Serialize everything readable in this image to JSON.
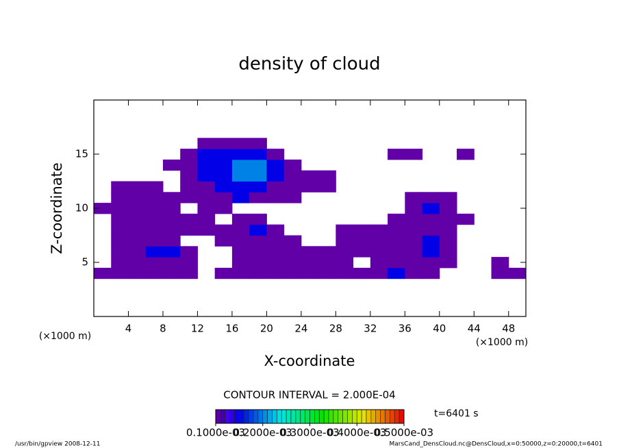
{
  "chart_data": {
    "type": "heatmap",
    "title": "density of cloud",
    "xlabel": "X-coordinate",
    "ylabel": "Z-coordinate",
    "xunit": "(×1000 m)",
    "yunit": "(×1000 m)",
    "xlim": [
      0,
      50
    ],
    "ylim": [
      0,
      20
    ],
    "xticks": [
      4,
      8,
      12,
      16,
      20,
      24,
      28,
      32,
      36,
      40,
      44,
      48
    ],
    "yticks": [
      5,
      10,
      15
    ],
    "x": [
      1,
      3,
      5,
      7,
      9,
      11,
      13,
      15,
      17,
      19,
      21,
      23,
      25,
      27,
      29,
      31,
      33,
      35,
      37,
      39,
      41,
      43,
      45,
      47,
      49
    ],
    "y": [
      4,
      5,
      6,
      7,
      8,
      9,
      10,
      11,
      12,
      13,
      14,
      15,
      16
    ],
    "z": [
      [
        0.0001,
        0.0001,
        0.0001,
        0.0001,
        0.0001,
        0.0001,
        null,
        0.0001,
        0.0001,
        0.0001,
        0.0001,
        0.0001,
        0.0001,
        0.0001,
        0.0001,
        0.0001,
        0.0001,
        0.00015,
        0.0001,
        0.0001,
        null,
        null,
        null,
        0.0001,
        0.0001
      ],
      [
        null,
        0.0001,
        0.0001,
        0.0001,
        0.0001,
        0.0001,
        null,
        null,
        0.0001,
        0.0001,
        0.0001,
        0.0001,
        0.0001,
        0.0001,
        0.0001,
        null,
        0.0001,
        0.0001,
        0.0001,
        0.0001,
        0.0001,
        null,
        null,
        0.0001,
        null
      ],
      [
        null,
        0.0001,
        0.0001,
        0.00015,
        0.00015,
        0.0001,
        null,
        null,
        0.0001,
        0.0001,
        0.0001,
        0.0001,
        0.0001,
        0.0001,
        0.0001,
        0.0001,
        0.0001,
        0.0001,
        0.0001,
        0.00015,
        0.0001,
        null,
        null,
        null,
        null
      ],
      [
        null,
        0.0001,
        0.0001,
        0.0001,
        0.0001,
        null,
        null,
        0.0001,
        0.0001,
        0.0001,
        0.0001,
        0.0001,
        null,
        null,
        0.0001,
        0.0001,
        0.0001,
        0.0001,
        0.0001,
        0.00015,
        0.0001,
        null,
        null,
        null,
        null
      ],
      [
        null,
        0.0001,
        0.0001,
        0.0001,
        0.0001,
        0.0001,
        0.0001,
        0.0001,
        0.0001,
        0.00015,
        0.0001,
        null,
        null,
        null,
        0.0001,
        0.0001,
        0.0001,
        0.0001,
        0.0001,
        0.0001,
        0.0001,
        null,
        null,
        null,
        null
      ],
      [
        null,
        0.0001,
        0.0001,
        0.0001,
        0.0001,
        0.0001,
        0.0001,
        null,
        0.0001,
        0.0001,
        null,
        null,
        null,
        null,
        null,
        null,
        null,
        0.0001,
        0.0001,
        0.0001,
        0.0001,
        0.0001,
        null,
        null,
        null
      ],
      [
        0.0001,
        0.0001,
        0.0001,
        0.0001,
        0.0001,
        null,
        0.0001,
        0.0001,
        null,
        null,
        null,
        null,
        null,
        null,
        null,
        null,
        null,
        null,
        0.0001,
        0.00015,
        0.0001,
        null,
        null,
        null,
        null
      ],
      [
        null,
        0.0001,
        0.0001,
        0.0001,
        0.0001,
        0.0001,
        0.0001,
        0.0001,
        0.00015,
        0.0001,
        0.0001,
        0.0001,
        null,
        null,
        null,
        null,
        null,
        null,
        0.0001,
        0.0001,
        0.0001,
        null,
        null,
        null,
        null
      ],
      [
        null,
        0.0001,
        0.0001,
        0.0001,
        null,
        0.0001,
        0.0001,
        0.00015,
        0.00015,
        0.00015,
        0.0001,
        0.0001,
        0.0001,
        0.0001,
        null,
        null,
        null,
        null,
        null,
        null,
        null,
        null,
        null,
        null,
        null
      ],
      [
        null,
        null,
        null,
        null,
        null,
        0.0001,
        0.00015,
        0.00015,
        0.0002,
        0.0002,
        0.00015,
        0.0001,
        0.0001,
        0.0001,
        null,
        null,
        null,
        null,
        null,
        null,
        null,
        null,
        null,
        null,
        null
      ],
      [
        null,
        null,
        null,
        null,
        0.0001,
        0.0001,
        0.00015,
        0.00015,
        0.0002,
        0.0002,
        0.00015,
        0.0001,
        null,
        null,
        null,
        null,
        null,
        null,
        null,
        null,
        null,
        null,
        null,
        null,
        null
      ],
      [
        null,
        null,
        null,
        null,
        null,
        0.0001,
        0.00015,
        0.00015,
        0.00015,
        0.00015,
        0.0001,
        null,
        null,
        null,
        null,
        null,
        null,
        0.0001,
        0.0001,
        null,
        null,
        0.0001,
        null,
        null,
        null
      ],
      [
        null,
        null,
        null,
        null,
        null,
        null,
        0.0001,
        0.0001,
        0.0001,
        0.0001,
        null,
        null,
        null,
        null,
        null,
        null,
        null,
        null,
        null,
        null,
        null,
        null,
        null,
        null,
        null
      ]
    ],
    "zlim": [
      0.0001,
      0.0005
    ],
    "colorbar_ticks": [
      {
        "value": 0.0001,
        "label": "0.1000e-03"
      },
      {
        "value": 0.0002,
        "label": "0.2000e-03"
      },
      {
        "value": 0.0003,
        "label": "0.3000e-03"
      },
      {
        "value": 0.0004,
        "label": "0.4000e-03"
      },
      {
        "value": 0.0005,
        "label": "0.5000e-03"
      }
    ],
    "contour_interval": "CONTOUR INTERVAL = 2.000E-04",
    "time_label": "t=6401 s",
    "footer_left": "/usr/bin/gpview   2008-12-11",
    "footer_right": "MarsCand_DensCloud.nc@DensCloud,x=0:50000,z=0:20000,t=6401"
  }
}
